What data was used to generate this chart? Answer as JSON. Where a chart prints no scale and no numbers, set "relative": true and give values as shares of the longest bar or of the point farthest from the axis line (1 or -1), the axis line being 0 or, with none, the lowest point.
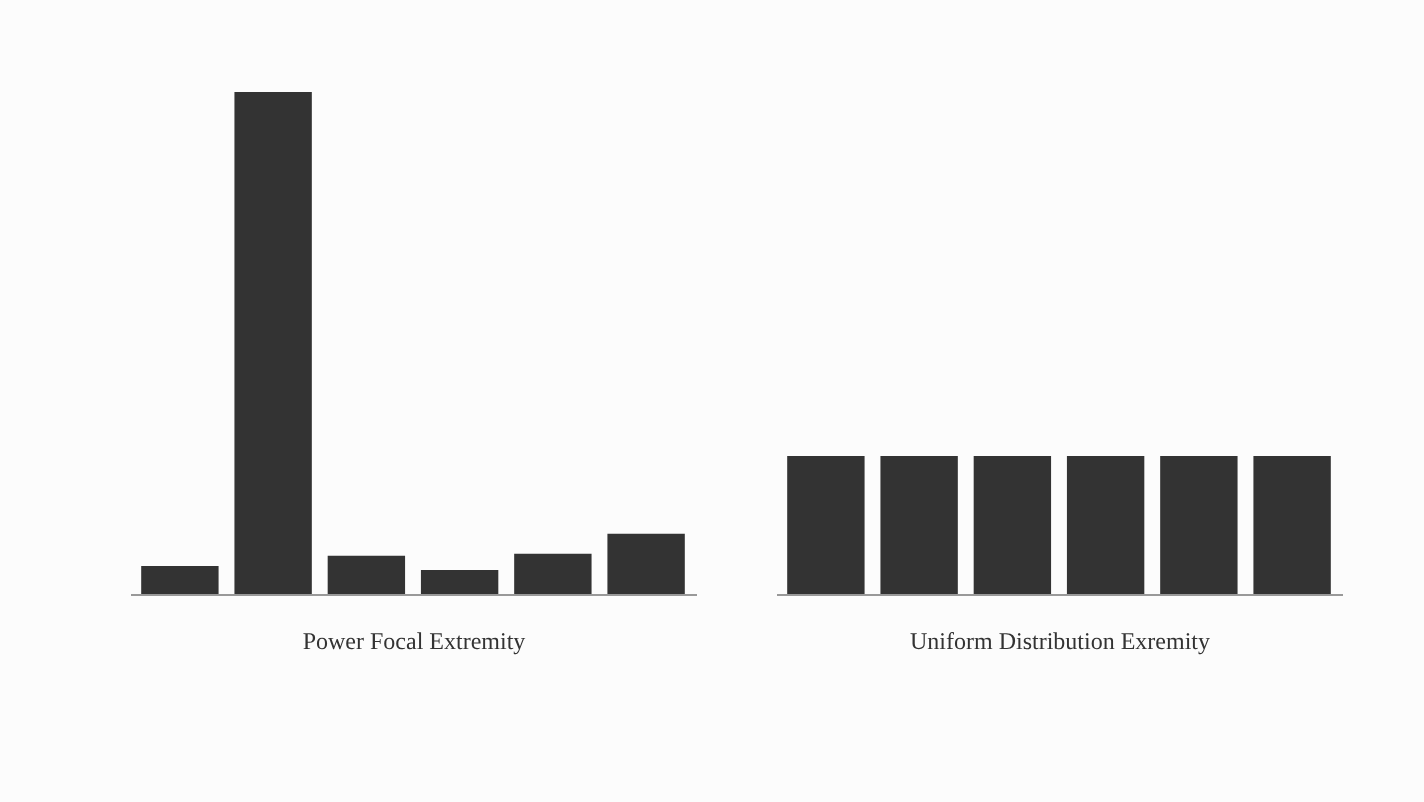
{
  "chart_data": [
    {
      "type": "bar",
      "relative": true,
      "xlabel": "Power Focal Extremity",
      "categories": [
        null,
        null,
        null,
        null,
        null,
        null
      ],
      "values": [
        0.056,
        1,
        0.076,
        0.048,
        0.08,
        0.12
      ],
      "color": "#333333"
    },
    {
      "type": "bar",
      "relative": true,
      "xlabel": "Uniform Distribution Exremity",
      "categories": [
        null,
        null,
        null,
        null,
        null,
        null
      ],
      "values": [
        1,
        1,
        1,
        1,
        1,
        1
      ],
      "color": "#333333"
    }
  ]
}
